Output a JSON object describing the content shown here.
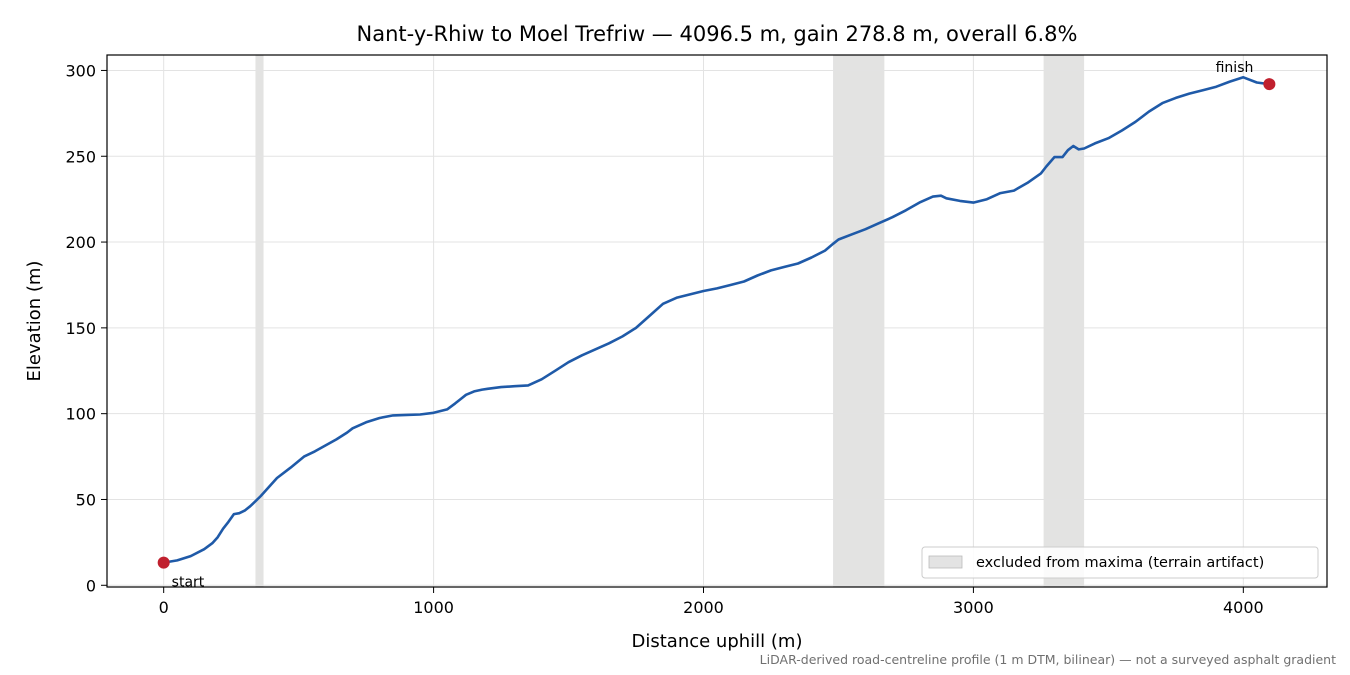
{
  "chart_data": {
    "type": "line",
    "title": "Nant-y-Rhiw to Moel Trefriw — 4096.5 m, gain 278.8 m, overall 6.8%",
    "xlabel": "Distance uphill (m)",
    "ylabel": "Elevation (m)",
    "xlim": [
      -210,
      4310
    ],
    "ylim": [
      -1,
      309
    ],
    "xticks": [
      0,
      1000,
      2000,
      3000,
      4000
    ],
    "yticks": [
      0,
      50,
      100,
      150,
      200,
      250,
      300
    ],
    "grid": true,
    "legend": {
      "placement": "bottom-right",
      "entries": [
        "excluded from maxima (terrain artifact)"
      ]
    },
    "excluded_ranges": [
      [
        340,
        370
      ],
      [
        2480,
        2670
      ],
      [
        3260,
        3410
      ]
    ],
    "series": [
      {
        "color": "#1f5aa8",
        "x": [
          0,
          50,
          100,
          150,
          180,
          200,
          220,
          240,
          260,
          280,
          300,
          320,
          340,
          360,
          380,
          420,
          470,
          520,
          560,
          600,
          640,
          680,
          700,
          750,
          800,
          850,
          900,
          950,
          1000,
          1050,
          1080,
          1100,
          1120,
          1150,
          1180,
          1200,
          1250,
          1300,
          1350,
          1400,
          1450,
          1500,
          1550,
          1600,
          1650,
          1700,
          1750,
          1800,
          1850,
          1900,
          1950,
          2000,
          2050,
          2100,
          2150,
          2200,
          2250,
          2300,
          2350,
          2400,
          2450,
          2480,
          2500,
          2550,
          2600,
          2650,
          2700,
          2750,
          2800,
          2850,
          2880,
          2900,
          2950,
          3000,
          3050,
          3100,
          3150,
          3200,
          3250,
          3270,
          3300,
          3330,
          3350,
          3370,
          3390,
          3410,
          3450,
          3500,
          3550,
          3600,
          3650,
          3700,
          3750,
          3800,
          3850,
          3900,
          3950,
          4000,
          4050,
          4096.5
        ],
        "values": [
          13.2,
          14.5,
          17,
          21,
          24.5,
          28,
          33,
          37,
          41.5,
          42,
          43.5,
          46,
          49,
          52,
          55.5,
          62.5,
          68.5,
          75,
          78,
          81.5,
          85,
          89,
          91.5,
          95,
          97.5,
          99,
          99.3,
          99.5,
          100.5,
          102.5,
          106,
          108.5,
          111,
          113,
          114,
          114.5,
          115.5,
          116,
          116.5,
          120,
          125,
          130,
          134,
          137.5,
          141,
          145,
          150,
          157,
          164,
          167.5,
          169.5,
          171.5,
          173,
          175,
          177,
          180.5,
          183.5,
          185.5,
          187.5,
          191,
          195,
          199,
          201.5,
          204.5,
          207.5,
          211,
          214.5,
          218.5,
          223,
          226.5,
          227,
          225.5,
          224,
          223,
          225,
          228.5,
          230,
          234.5,
          240,
          244,
          249.5,
          249.5,
          253.5,
          256,
          254,
          254.5,
          257.5,
          260.5,
          265,
          270,
          276,
          281,
          284,
          286.5,
          288.5,
          290.5,
          293.5,
          296,
          293,
          292
        ]
      }
    ],
    "markers": [
      {
        "x": 0,
        "y": 13.2,
        "label": "start",
        "color": "#c0202e"
      },
      {
        "x": 4096.5,
        "y": 292,
        "label": "finish",
        "color": "#c0202e"
      }
    ],
    "footnote": "LiDAR-derived road-centreline profile (1 m DTM, bilinear) — not a surveyed asphalt gradient"
  }
}
